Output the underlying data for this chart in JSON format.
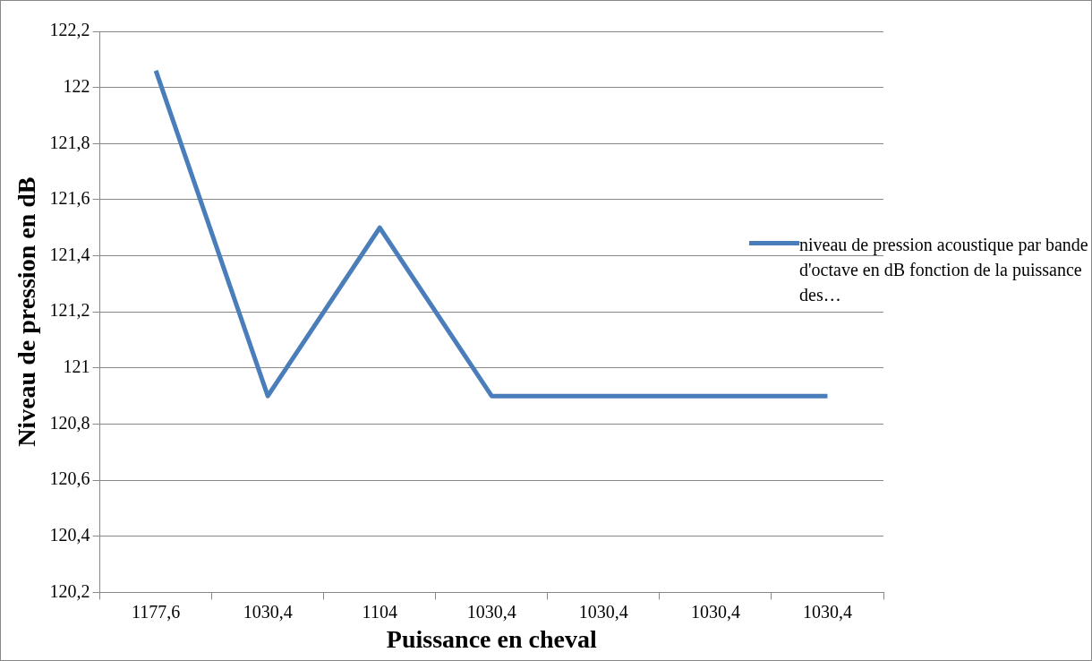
{
  "chart_data": {
    "type": "line",
    "xlabel": "Puissance en cheval",
    "ylabel": "Niveau de pression en dB",
    "categories": [
      "1177,6",
      "1030,4",
      "1104",
      "1030,4",
      "1030,4",
      "1030,4",
      "1030,4"
    ],
    "series": [
      {
        "name": "niveau de pression acoustique par bande d'octave en dB fonction de la puissance des…",
        "color": "#4a7ebb",
        "values": [
          122.06,
          120.9,
          121.5,
          120.9,
          120.9,
          120.9,
          120.9
        ]
      }
    ],
    "ylim": [
      120.2,
      122.2
    ],
    "yticks": [
      {
        "value": 120.2,
        "label": "120,2"
      },
      {
        "value": 120.4,
        "label": "120,4"
      },
      {
        "value": 120.6,
        "label": "120,6"
      },
      {
        "value": 120.8,
        "label": "120,8"
      },
      {
        "value": 121,
        "label": "121"
      },
      {
        "value": 121.2,
        "label": "121,2"
      },
      {
        "value": 121.4,
        "label": "121,4"
      },
      {
        "value": 121.6,
        "label": "121,6"
      },
      {
        "value": 121.8,
        "label": "121,8"
      },
      {
        "value": 122,
        "label": "122"
      },
      {
        "value": 122.2,
        "label": "122,2"
      }
    ],
    "grid": "y",
    "legend": "right",
    "marker": "none",
    "line_style": "solid"
  }
}
